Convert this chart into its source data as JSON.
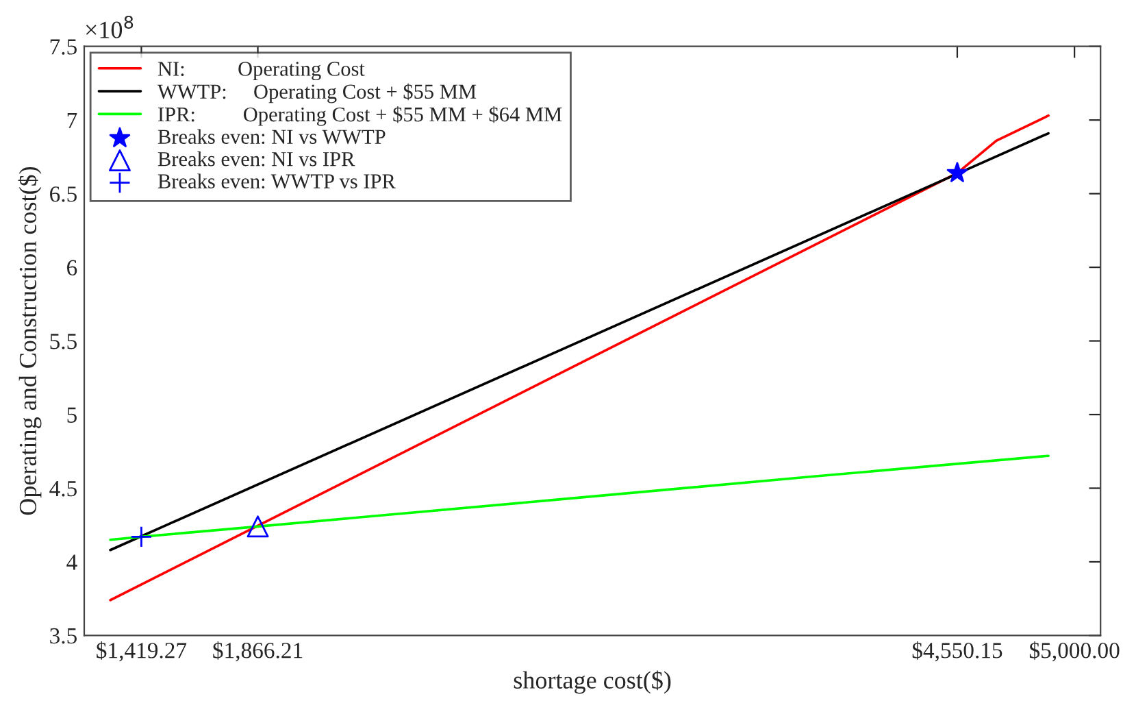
{
  "chart_data": {
    "type": "line",
    "xlabel": "shortage cost($)",
    "ylabel": "Operating and Construction cost($)",
    "annotations": [
      "×10$^{8}$"
    ],
    "xlim": [
      1200,
      5100
    ],
    "xticks": [
      {
        "value": 1419.27,
        "label": "$1,419.27"
      },
      {
        "value": 1866.21,
        "label": "$1,866.21"
      },
      {
        "value": 4550.15,
        "label": "$4,550.15"
      },
      {
        "value": 5000,
        "label": "$5,000.00"
      }
    ],
    "ylim": [
      3.5,
      7.5
    ],
    "yticks": [
      3.5,
      4,
      4.5,
      5,
      5.5,
      6,
      6.5,
      7,
      7.5
    ],
    "grid": false,
    "legend": "top left",
    "line_style": "solid",
    "series": [
      {
        "name": "NI:          Operating Cost",
        "color": "#ff0000",
        "x": [
          1300,
          4550.15,
          4700,
          4900
        ],
        "values": [
          3.74,
          6.64,
          6.86,
          7.03
        ]
      },
      {
        "name": "WWTP:     Operating Cost + $55 MM",
        "color": "#000000",
        "x": [
          1300,
          4900
        ],
        "values": [
          4.08,
          6.91
        ]
      },
      {
        "name": "IPR:         Operating Cost + $55 MM + $64 MM",
        "color": "#00ff00",
        "x": [
          1300,
          1419.27,
          1866.21,
          3000,
          4000,
          4900
        ],
        "values": [
          4.15,
          4.17,
          4.24,
          4.42,
          4.58,
          4.72
        ]
      },
      {
        "name": "Breaks even: NI vs WWTP",
        "type": "scatter",
        "marker": "star",
        "color": "#0000ff",
        "x": [
          4550.15
        ],
        "values": [
          6.64
        ]
      },
      {
        "name": "Breaks even: NI vs IPR",
        "type": "scatter",
        "marker": "triangle",
        "color": "#0000ff",
        "x": [
          1866.21
        ],
        "values": [
          4.24
        ]
      },
      {
        "name": "Breaks even: WWTP vs IPR",
        "type": "scatter",
        "marker": "cross",
        "color": "#0000ff",
        "x": [
          1419.27
        ],
        "values": [
          4.17
        ]
      }
    ]
  }
}
